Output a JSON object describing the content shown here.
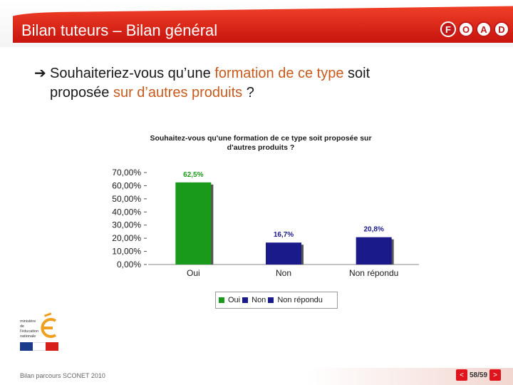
{
  "slide": {
    "title": "Bilan tuteurs – Bilan général",
    "logo_letters": [
      "F",
      "O",
      "A",
      "D"
    ],
    "question": {
      "part1": "Souhaiteriez-vous qu’une ",
      "part2": "formation de ce type",
      "part3": " soit",
      "part4": "proposée ",
      "part5": "sur d’autres produits",
      "part6": " ?"
    },
    "footer": "Bilan parcours SCONET 2010",
    "page_counter": "58/59",
    "ministry_text": "ministère de l'éducation nationale"
  },
  "colors": {
    "header_red": "#d8201a",
    "accent_orange": "#c85a1c",
    "oui": "#1a9a1a",
    "non": "#1a1a8a",
    "non_repondu": "#1a1a8a"
  },
  "chart_data": {
    "type": "bar",
    "title": "Souhaitez-vous qu'une formation de ce type soit proposée sur d'autres produits ?",
    "categories": [
      "Oui",
      "Non",
      "Non répondu"
    ],
    "values": [
      62.5,
      16.7,
      20.8
    ],
    "value_labels": [
      "62,5%",
      "16,7%",
      "20,8%"
    ],
    "bar_colors": [
      "#1a9a1a",
      "#1a1a8a",
      "#1a1a8a"
    ],
    "label_colors": [
      "#1a9a1a",
      "#1a1a8a",
      "#1a1a8a"
    ],
    "ylim": [
      0,
      70
    ],
    "yticks": [
      "70,00%",
      "60,00%",
      "50,00%",
      "40,00%",
      "30,00%",
      "20,00%",
      "10,00%",
      "0,00%"
    ],
    "ytick_values": [
      70,
      60,
      50,
      40,
      30,
      20,
      10,
      0
    ],
    "legend": [
      {
        "name": "Oui",
        "color": "#1a9a1a"
      },
      {
        "name": "Non",
        "color": "#1a1a8a"
      },
      {
        "name": "Non répondu",
        "color": "#1a1a8a"
      }
    ],
    "legend_position": "bottom",
    "grid": false
  }
}
